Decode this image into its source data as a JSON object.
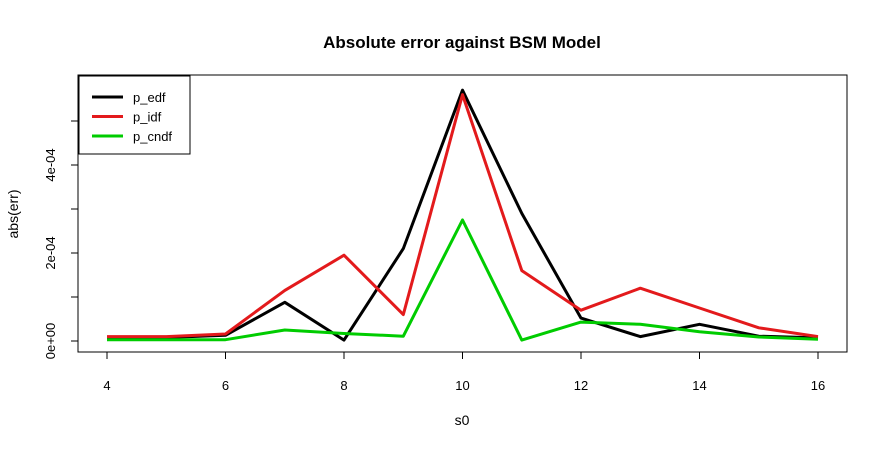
{
  "chart_data": {
    "type": "line",
    "title": "Absolute error against BSM Model",
    "xlabel": "s0",
    "ylabel": "abs(err)",
    "xlim": [
      4,
      16
    ],
    "ylim": [
      0,
      0.000575
    ],
    "x_ticks": [
      4,
      6,
      8,
      10,
      12,
      14,
      16
    ],
    "x_tick_labels": [
      "4",
      "6",
      "8",
      "10",
      "12",
      "14",
      "16"
    ],
    "y_ticks": [
      0,
      0.0002,
      0.0004
    ],
    "y_tick_labels": [
      "0e+00",
      "2e-04",
      "4e-04"
    ],
    "y_minor_ticks": [
      0.0001,
      0.0003,
      0.0005
    ],
    "legend_position": "top-left",
    "x": [
      4,
      5,
      6,
      7,
      8,
      9,
      10,
      11,
      12,
      13,
      14,
      15,
      16
    ],
    "series": [
      {
        "name": "p_edf",
        "color": "#000000",
        "values": [
          8e-06,
          8e-06,
          1.3e-05,
          8.8e-05,
          2e-06,
          0.00021,
          0.00057,
          0.00029,
          5.2e-05,
          1e-05,
          3.8e-05,
          1.1e-05,
          7e-06
        ]
      },
      {
        "name": "p_idf",
        "color": "#e31a1c",
        "values": [
          1e-05,
          1e-05,
          1.6e-05,
          0.000115,
          0.000195,
          6e-05,
          0.00056,
          0.00016,
          7e-05,
          0.00012,
          7.5e-05,
          3e-05,
          1e-05
        ]
      },
      {
        "name": "p_cndf",
        "color": "#00cc00",
        "values": [
          3e-06,
          3e-06,
          3e-06,
          2.5e-05,
          1.7e-05,
          1.1e-05,
          0.000275,
          2e-06,
          4.3e-05,
          3.8e-05,
          2.1e-05,
          9e-06,
          4e-06
        ]
      }
    ]
  }
}
